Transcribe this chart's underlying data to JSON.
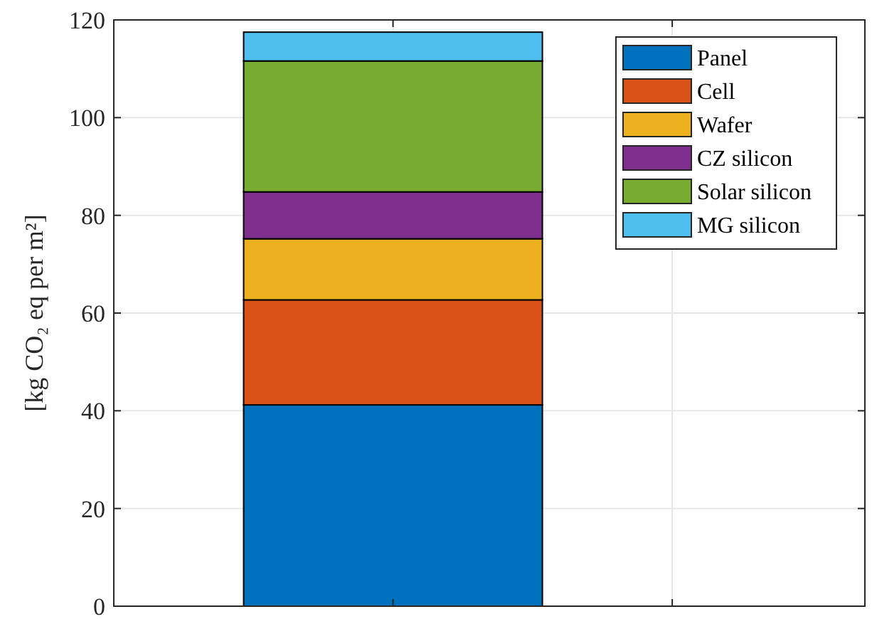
{
  "chart_data": {
    "type": "bar",
    "stacked": true,
    "ylabel": "[kg CO₂ eq per m²]",
    "categories": [
      null
    ],
    "ylim": [
      0,
      120
    ],
    "yticks": [
      0,
      20,
      40,
      60,
      80,
      100,
      120
    ],
    "tick_labels": "y",
    "grid": true,
    "legend": "top right",
    "series": [
      {
        "name": "Panel",
        "color": "#0072bd",
        "values": [
          41.2
        ]
      },
      {
        "name": "Cell",
        "color": "#d95319",
        "values": [
          21.5
        ]
      },
      {
        "name": "Wafer",
        "color": "#edb120",
        "values": [
          12.5
        ]
      },
      {
        "name": "CZ silicon",
        "color": "#7e2f8e",
        "values": [
          9.6
        ]
      },
      {
        "name": "Solar silicon",
        "color": "#77ac30",
        "values": [
          26.8
        ]
      },
      {
        "name": "MG silicon",
        "color": "#4dbeee",
        "values": [
          5.9
        ]
      }
    ]
  }
}
